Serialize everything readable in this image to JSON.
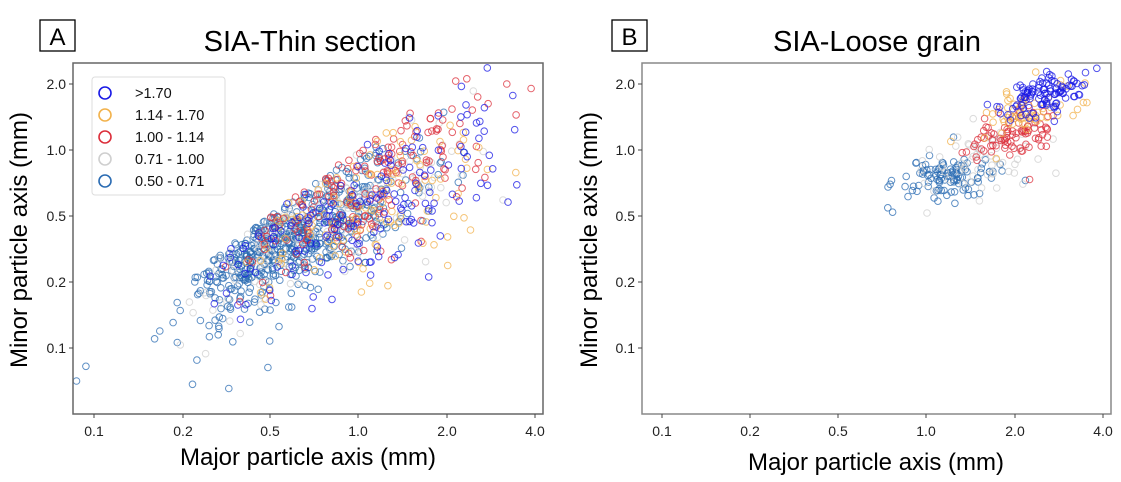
{
  "chart_data": [
    {
      "type": "scatter",
      "panel_label": "A",
      "title": "SIA-Thin section",
      "xlabel": "Major particle axis (mm)",
      "ylabel": "Minor particle axis (mm)",
      "x_ticks": [
        0.1,
        0.2,
        0.5,
        1.0,
        2.0,
        4.0
      ],
      "x_tick_labels": [
        "0.1",
        "0.2",
        "0.5",
        "1.0",
        "2.0",
        "4.0"
      ],
      "y_ticks": [
        0.1,
        0.2,
        0.5,
        1.0,
        2.0
      ],
      "y_tick_labels": [
        "0.1",
        "0.2",
        "0.5",
        "1.0",
        "2.0"
      ],
      "xlim": [
        0.085,
        4.3
      ],
      "ylim": [
        0.045,
        2.5
      ],
      "axis_scale": "evenly spaced ticks (phi-like)",
      "grid": false,
      "legend": {
        "position": "top-left",
        "entries": [
          {
            "label": ">1.70",
            "color": "#1a1ae6"
          },
          {
            "label": "1.14 - 1.70",
            "color": "#f2b24c"
          },
          {
            "label": "1.00 - 1.14",
            "color": "#dc2f3b"
          },
          {
            "label": "0.71 - 1.00",
            "color": "#cfcfcf"
          },
          {
            "label": "0.50 - 0.71",
            "color": "#2b6cb3"
          }
        ]
      },
      "series": [
        {
          "name": "0.50 - 0.71",
          "color": "#2b6cb3",
          "count": 620,
          "center": {
            "x": 0.62,
            "y": 0.38
          },
          "spread": {
            "x": 0.85,
            "y": 0.9
          },
          "corr": 0.7
        },
        {
          "name": "0.71 - 1.00",
          "color": "#cfcfcf",
          "count": 150,
          "center": {
            "x": 0.8,
            "y": 0.45
          },
          "spread": {
            "x": 1.0,
            "y": 1.0
          },
          "corr": 0.75
        },
        {
          "name": "1.00 - 1.14",
          "color": "#dc2f3b",
          "count": 190,
          "center": {
            "x": 1.15,
            "y": 0.7
          },
          "spread": {
            "x": 0.9,
            "y": 0.95
          },
          "corr": 0.7
        },
        {
          "name": "1.14 - 1.70",
          "color": "#f2b24c",
          "count": 120,
          "center": {
            "x": 1.1,
            "y": 0.55
          },
          "spread": {
            "x": 1.0,
            "y": 1.1
          },
          "corr": 0.6
        },
        {
          "name": ">1.70",
          "color": "#1a1ae6",
          "count": 170,
          "center": {
            "x": 1.2,
            "y": 0.6
          },
          "spread": {
            "x": 1.15,
            "y": 1.2
          },
          "corr": 0.78
        }
      ]
    },
    {
      "type": "scatter",
      "panel_label": "B",
      "title": "SIA-Loose grain",
      "xlabel": "Major particle axis (mm)",
      "ylabel": "Minor particle axis (mm)",
      "x_ticks": [
        0.1,
        0.2,
        0.5,
        1.0,
        2.0,
        4.0
      ],
      "x_tick_labels": [
        "0.1",
        "0.2",
        "0.5",
        "1.0",
        "2.0",
        "4.0"
      ],
      "y_ticks": [
        0.1,
        0.2,
        0.5,
        1.0,
        2.0
      ],
      "y_tick_labels": [
        "0.1",
        "0.2",
        "0.5",
        "1.0",
        "2.0"
      ],
      "xlim": [
        0.085,
        4.3
      ],
      "ylim": [
        0.045,
        2.5
      ],
      "axis_scale": "evenly spaced ticks (phi-like)",
      "grid": false,
      "series": [
        {
          "name": "0.50 - 0.71",
          "color": "#2b6cb3",
          "count": 110,
          "center": {
            "x": 1.2,
            "y": 0.75
          },
          "spread": {
            "x": 0.35,
            "y": 0.22
          },
          "corr": 0.2
        },
        {
          "name": "0.71 - 1.00",
          "color": "#cfcfcf",
          "count": 60,
          "center": {
            "x": 1.6,
            "y": 0.9
          },
          "spread": {
            "x": 0.4,
            "y": 0.3
          },
          "corr": 0.3
        },
        {
          "name": "1.00 - 1.14",
          "color": "#dc2f3b",
          "count": 90,
          "center": {
            "x": 2.0,
            "y": 1.2
          },
          "spread": {
            "x": 0.35,
            "y": 0.25
          },
          "corr": 0.4
        },
        {
          "name": "1.14 - 1.70",
          "color": "#f2b24c",
          "count": 60,
          "center": {
            "x": 2.1,
            "y": 1.45
          },
          "spread": {
            "x": 0.4,
            "y": 0.3
          },
          "corr": 0.5
        },
        {
          "name": ">1.70",
          "color": "#1a1ae6",
          "count": 110,
          "center": {
            "x": 2.5,
            "y": 1.8
          },
          "spread": {
            "x": 0.3,
            "y": 0.22
          },
          "corr": 0.5
        }
      ]
    }
  ]
}
